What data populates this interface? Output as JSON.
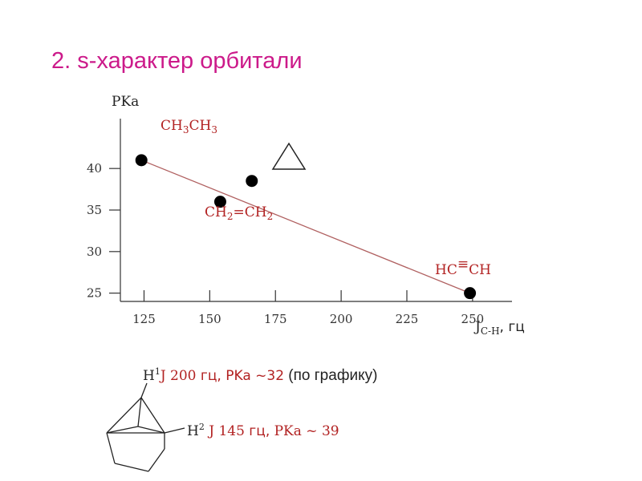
{
  "title": "2. s-характер орбитали",
  "colors": {
    "accent": "#cc1a8a",
    "annotation": "#b22222",
    "line": "#b06060",
    "text": "#333333"
  },
  "chart_data": {
    "type": "scatter",
    "xlabel": "J",
    "xlabel_sub": "C-H",
    "xlabel_unit": ", гц",
    "ylabel": "PKa",
    "x_ticks": [
      "125",
      "150",
      "175",
      "200",
      "225",
      "250"
    ],
    "y_ticks": [
      "40",
      "35",
      "30",
      "25"
    ],
    "xlim": [
      116,
      265
    ],
    "ylim": [
      24,
      46
    ],
    "points": [
      {
        "x": 124,
        "y": 41,
        "label": "CH3CH3"
      },
      {
        "x": 154,
        "y": 36,
        "label": "CH2=CH2"
      },
      {
        "x": 166,
        "y": 38.5,
        "label": ""
      },
      {
        "x": 249,
        "y": 25,
        "label": "HC≡CH"
      }
    ],
    "trendline": {
      "x": [
        124,
        249
      ],
      "y": [
        41,
        25
      ]
    },
    "annotations": {
      "ethane": {
        "main": "CH",
        "sub1": "3",
        "mid": "CH",
        "sub2": "3"
      },
      "ethylene": {
        "main": "CH",
        "sub1": "2",
        "mid": "=CH",
        "sub2": "2"
      },
      "acetylene": {
        "left": "HC",
        "bond": "≡",
        "right": "CH"
      }
    }
  },
  "notes": {
    "h1": {
      "atom": "H",
      "sup": "1",
      "j": "J  200",
      "unit": " гц,",
      "pka": "  PKa  ~32",
      "ref": " (по графику)"
    },
    "h2": {
      "atom": "H",
      "sup": "2",
      "j": " J",
      "val": "  145",
      "unit": " гц,",
      "pka": "  PKa  ~ 39"
    }
  }
}
